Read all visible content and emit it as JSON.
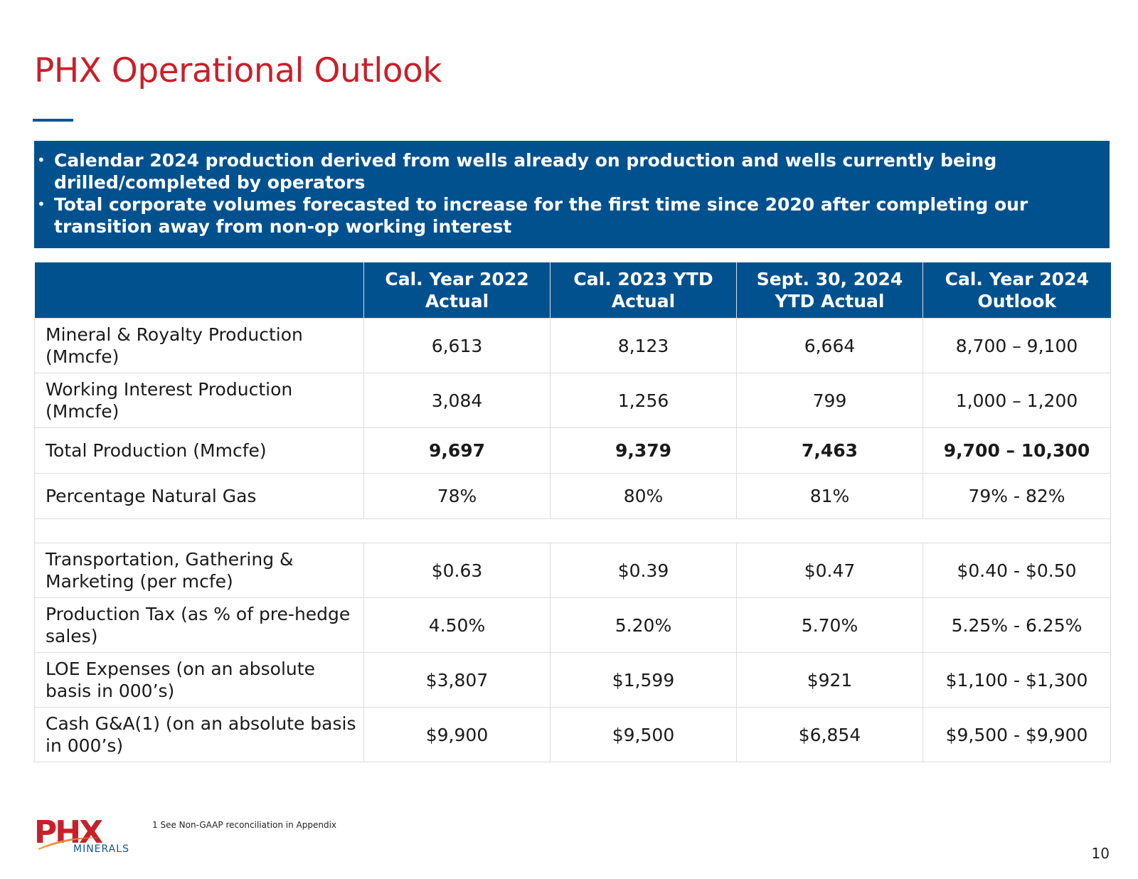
{
  "slide": {
    "title": "PHX Operational Outlook",
    "page_number": "10",
    "footnote": "1 See Non-GAAP reconciliation in Appendix",
    "brand_color": "#c8202a",
    "accent_color": "#02518f"
  },
  "banner": {
    "bullets": [
      "Calendar 2024 production derived from wells already on production and wells currently being drilled/completed by operators",
      "Total corporate volumes forecasted to increase for the first time since 2020 after completing our transition away from non-op working interest"
    ]
  },
  "table": {
    "headers": [
      "",
      "Cal. Year 2022 Actual",
      "Cal. 2023 YTD Actual",
      "Sept. 30, 2024 YTD Actual",
      "Cal. Year 2024 Outlook"
    ],
    "rows": [
      {
        "label": "Mineral & Royalty Production (Mmcfe)",
        "values": [
          "6,613",
          "8,123",
          "6,664",
          "8,700 – 9,100"
        ]
      },
      {
        "label": "Working Interest Production (Mmcfe)",
        "values": [
          "3,084",
          "1,256",
          "799",
          "1,000 – 1,200"
        ]
      },
      {
        "label": "Total Production (Mmcfe)",
        "values": [
          "9,697",
          "9,379",
          "7,463",
          "9,700 – 10,300"
        ]
      },
      {
        "label": "Percentage Natural Gas",
        "values": [
          "78%",
          "80%",
          "81%",
          "79% - 82%"
        ]
      },
      {
        "label": "Transportation, Gathering & Marketing (per mcfe)",
        "values": [
          "$0.63",
          "$0.39",
          "$0.47",
          "$0.40 - $0.50"
        ]
      },
      {
        "label": "Production Tax (as % of pre-hedge sales)",
        "values": [
          "4.50%",
          "5.20%",
          "5.70%",
          "5.25% - 6.25%"
        ]
      },
      {
        "label": "LOE Expenses (on an absolute basis in 000’s)",
        "values": [
          "$3,807",
          "$1,599",
          "$921",
          "$1,100 - $1,300"
        ]
      },
      {
        "label": "Cash G&A(1) (on an absolute basis in 000’s)",
        "values": [
          "$9,900",
          "$9,500",
          "$6,854",
          "$9,500 - $9,900"
        ]
      }
    ]
  },
  "logo": {
    "mark": "PHX",
    "subtitle": "MINERALS",
    "icon": "phx-minerals-logo-icon"
  }
}
